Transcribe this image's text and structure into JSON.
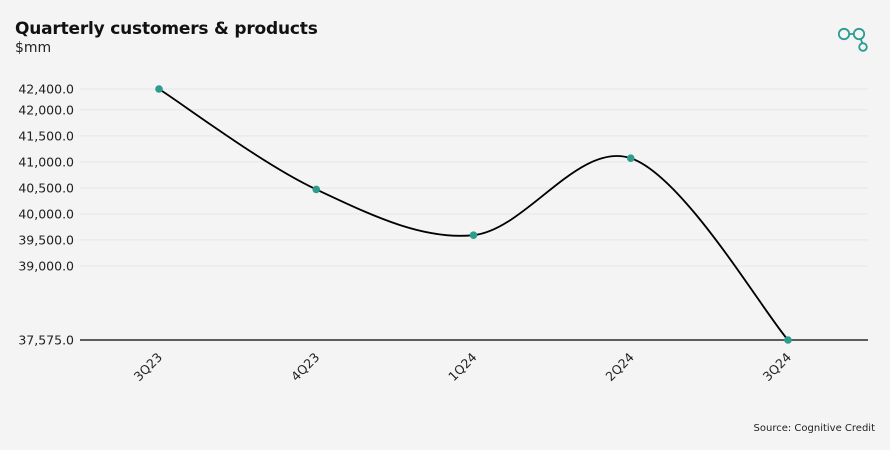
{
  "title": "Quarterly customers & products",
  "subtitle": "$mm",
  "source": "Source: Cognitive Credit",
  "logo_icon": "cognitive-credit-logo-icon",
  "colors": {
    "line": "#000000",
    "marker": "#2a9d8f",
    "grid": "#e6e6e6",
    "axis": "#000000",
    "logo": "#2a9d8f"
  },
  "chart_data": {
    "type": "line",
    "title": "Quarterly customers & products",
    "subtitle": "$mm",
    "xlabel": "",
    "ylabel": "",
    "categories": [
      "3Q23",
      "4Q23",
      "1Q24",
      "2Q24",
      "3Q24"
    ],
    "values": [
      42400.0,
      40470.0,
      39590.0,
      41070.0,
      37575.0
    ],
    "ylim": [
      37575.0,
      42400.0
    ],
    "yticks": [
      "42,400.0",
      "42,000.0",
      "41,500.0",
      "41,000.0",
      "40,500.0",
      "40,000.0",
      "39,500.0",
      "39,000.0",
      "37,575.0"
    ],
    "ytick_values": [
      42400,
      42000,
      41500,
      41000,
      40500,
      40000,
      39500,
      39000,
      37575
    ],
    "smooth": true,
    "grid": true,
    "legend": "none"
  }
}
